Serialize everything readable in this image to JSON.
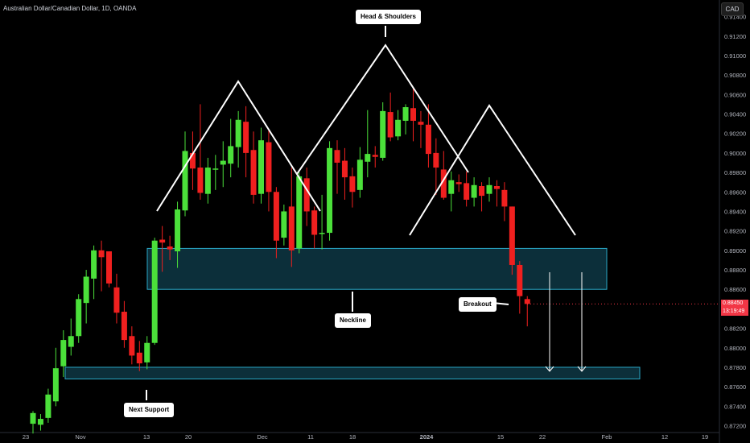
{
  "header": {
    "symbol_title": "Australian Dollar/Canadian Dollar, 1D, OANDA",
    "currency": "CAD"
  },
  "last_price": {
    "value": "0.88450",
    "countdown": "13:19:49"
  },
  "annotations": {
    "pattern": "Head & Shoulders",
    "neckline": "Neckline",
    "breakout": "Breakout",
    "support": "Next Support"
  },
  "colors": {
    "up": "#4be03a",
    "down": "#f0201f",
    "zone_fill": "#0c2f3a",
    "zone_border": "#2aa7c6",
    "pattern_line": "#ffffff",
    "axis_text": "#b2b5be"
  },
  "chart_data": {
    "type": "candlestick",
    "title": "Australian Dollar/Canadian Dollar, 1D, OANDA",
    "ylim": [
      0.8713,
      0.9157
    ],
    "y_ticks": [
      "0.91400",
      "0.91200",
      "0.91000",
      "0.90800",
      "0.90600",
      "0.90400",
      "0.90200",
      "0.90000",
      "0.89800",
      "0.89600",
      "0.89400",
      "0.89200",
      "0.89000",
      "0.88800",
      "0.88600",
      "0.88400",
      "0.88200",
      "0.88000",
      "0.87800",
      "0.87600",
      "0.87400",
      "0.87200"
    ],
    "x_ticks": [
      "23",
      "Nov",
      "13",
      "20",
      "Dec",
      "11",
      "18",
      "2024",
      "15",
      "22",
      "Feb",
      "12",
      "19"
    ],
    "last_price": 0.8845,
    "ohlc": [
      [
        0.8722,
        0.8733,
        0.8712,
        0.8735
      ],
      [
        0.8721,
        0.8727,
        0.8715,
        0.8732
      ],
      [
        0.8728,
        0.8752,
        0.8723,
        0.8758
      ],
      [
        0.8745,
        0.8779,
        0.874,
        0.88
      ],
      [
        0.8781,
        0.8808,
        0.877,
        0.8818
      ],
      [
        0.8801,
        0.8812,
        0.8792,
        0.883
      ],
      [
        0.8812,
        0.885,
        0.8805,
        0.8855
      ],
      [
        0.8846,
        0.8873,
        0.8825,
        0.888
      ],
      [
        0.8871,
        0.89,
        0.885,
        0.8905
      ],
      [
        0.89,
        0.8893,
        0.8858,
        0.891
      ],
      [
        0.8899,
        0.8866,
        0.8862,
        0.8897
      ],
      [
        0.8862,
        0.8836,
        0.8825,
        0.8876
      ],
      [
        0.8837,
        0.8808,
        0.88,
        0.8848
      ],
      [
        0.8812,
        0.8792,
        0.8783,
        0.8822
      ],
      [
        0.8795,
        0.8784,
        0.8776,
        0.8807
      ],
      [
        0.8785,
        0.8805,
        0.8778,
        0.8812
      ],
      [
        0.8805,
        0.891,
        0.8803,
        0.8913
      ],
      [
        0.8911,
        0.8908,
        0.8878,
        0.8925
      ],
      [
        0.8904,
        0.8901,
        0.889,
        0.8915
      ],
      [
        0.8899,
        0.8942,
        0.8882,
        0.895
      ],
      [
        0.8941,
        0.9002,
        0.8935,
        0.9022
      ],
      [
        0.9,
        0.8984,
        0.8962,
        0.9022
      ],
      [
        0.8985,
        0.8959,
        0.8952,
        0.905
      ],
      [
        0.8958,
        0.8985,
        0.8948,
        0.8995
      ],
      [
        0.8983,
        0.8984,
        0.8962,
        0.8998
      ],
      [
        0.8988,
        0.8992,
        0.8965,
        0.9012
      ],
      [
        0.8989,
        0.9007,
        0.8975,
        0.9035
      ],
      [
        0.9006,
        0.9034,
        0.8985,
        0.9043
      ],
      [
        0.9032,
        0.9,
        0.8975,
        0.9048
      ],
      [
        0.9003,
        0.8957,
        0.8948,
        0.9022
      ],
      [
        0.8958,
        0.9013,
        0.8948,
        0.9026
      ],
      [
        0.9011,
        0.896,
        0.894,
        0.9024
      ],
      [
        0.896,
        0.891,
        0.8892,
        0.8965
      ],
      [
        0.8913,
        0.894,
        0.8905,
        0.8947
      ],
      [
        0.8945,
        0.89,
        0.8883,
        0.8985
      ],
      [
        0.8902,
        0.8976,
        0.8897,
        0.898
      ],
      [
        0.8974,
        0.894,
        0.8925,
        0.8985
      ],
      [
        0.8941,
        0.8916,
        0.8902,
        0.8945
      ],
      [
        0.8917,
        0.8918,
        0.8901,
        0.8957
      ],
      [
        0.8918,
        0.9005,
        0.891,
        0.9012
      ],
      [
        0.9003,
        0.899,
        0.8958,
        0.9013
      ],
      [
        0.8992,
        0.8975,
        0.8952,
        0.9005
      ],
      [
        0.8976,
        0.896,
        0.8944,
        0.8985
      ],
      [
        0.8962,
        0.8993,
        0.8954,
        0.9006
      ],
      [
        0.8991,
        0.8999,
        0.8975,
        0.9044
      ],
      [
        0.8998,
        0.8996,
        0.8985,
        0.9007
      ],
      [
        0.8995,
        0.9043,
        0.8992,
        0.9052
      ],
      [
        0.9042,
        0.9016,
        0.9012,
        0.9062
      ],
      [
        0.9017,
        0.9034,
        0.9013,
        0.9044
      ],
      [
        0.9033,
        0.9047,
        0.9019,
        0.905
      ],
      [
        0.9046,
        0.9033,
        0.9012,
        0.9066
      ],
      [
        0.9032,
        0.9029,
        0.9005,
        0.9043
      ],
      [
        0.9029,
        0.8999,
        0.8985,
        0.905
      ],
      [
        0.9,
        0.8985,
        0.8957,
        0.9015
      ],
      [
        0.8983,
        0.8954,
        0.8952,
        0.9002
      ],
      [
        0.8958,
        0.8972,
        0.894,
        0.8981
      ],
      [
        0.897,
        0.8968,
        0.896,
        0.8978
      ],
      [
        0.8969,
        0.8952,
        0.8945,
        0.8981
      ],
      [
        0.8954,
        0.8967,
        0.8945,
        0.8975
      ],
      [
        0.8966,
        0.8956,
        0.894,
        0.897
      ],
      [
        0.8958,
        0.8967,
        0.895,
        0.8975
      ],
      [
        0.8966,
        0.8963,
        0.8945,
        0.8972
      ],
      [
        0.8962,
        0.8945,
        0.893,
        0.897
      ],
      [
        0.8945,
        0.8885,
        0.8875,
        0.8945
      ],
      [
        0.8885,
        0.8853,
        0.8835,
        0.8889
      ],
      [
        0.885,
        0.8845,
        0.8822,
        0.8853
      ]
    ],
    "zones": [
      {
        "name": "neckline",
        "from": 0.886,
        "to": 0.8902
      },
      {
        "name": "next_support",
        "from": 0.8768,
        "to": 0.878
      }
    ]
  }
}
